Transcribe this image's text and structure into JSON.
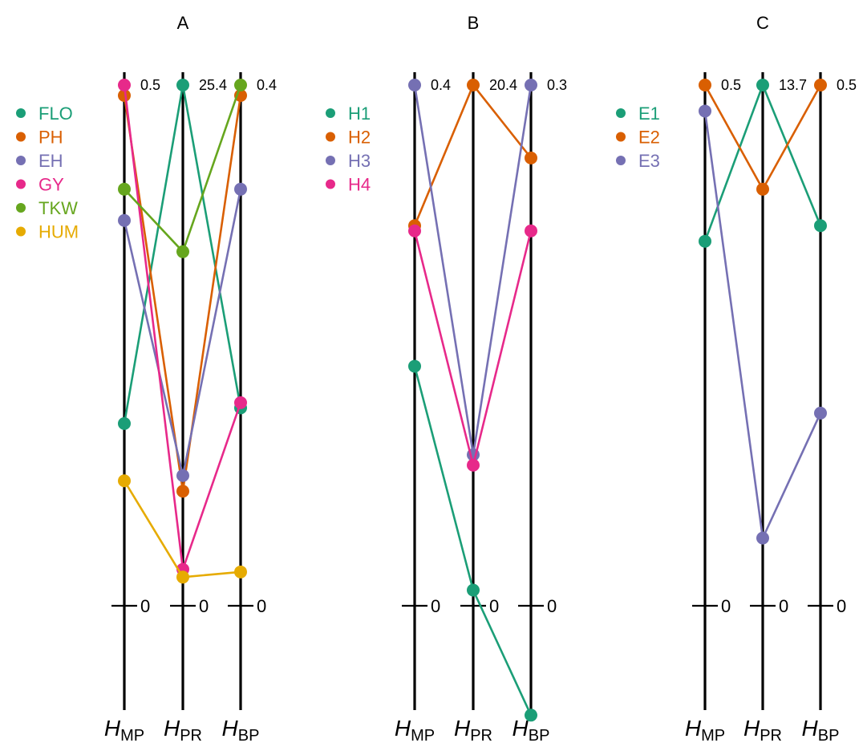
{
  "chart_data": [
    {
      "type": "line",
      "title": "A",
      "axes": [
        "H_MP",
        "H_PR",
        "H_BP"
      ],
      "axis_labels": [
        {
          "main": "H",
          "sub": "MP"
        },
        {
          "main": "H",
          "sub": "PR"
        },
        {
          "main": "H",
          "sub": "BP"
        }
      ],
      "axis_max": [
        "0.5",
        "25.4",
        "0.4"
      ],
      "axis_min": [
        "0",
        "0",
        "0"
      ],
      "y_scale": "relative",
      "series": [
        {
          "name": "FLO",
          "color": "#1B9E77",
          "values": [
            0.35,
            1.0,
            0.38
          ]
        },
        {
          "name": "PH",
          "color": "#D95F02",
          "values": [
            0.98,
            0.22,
            0.98
          ]
        },
        {
          "name": "EH",
          "color": "#7570B3",
          "values": [
            0.74,
            0.25,
            0.8
          ]
        },
        {
          "name": "GY",
          "color": "#E7298A",
          "values": [
            1.0,
            0.07,
            0.39
          ]
        },
        {
          "name": "TKW",
          "color": "#66A61E",
          "values": [
            0.8,
            0.68,
            1.0
          ]
        },
        {
          "name": "HUM",
          "color": "#E6AB02",
          "values": [
            0.24,
            0.055,
            0.065
          ]
        }
      ]
    },
    {
      "type": "line",
      "title": "B",
      "axes": [
        "H_MP",
        "H_PR",
        "H_BP"
      ],
      "axis_labels": [
        {
          "main": "H",
          "sub": "MP"
        },
        {
          "main": "H",
          "sub": "PR"
        },
        {
          "main": "H",
          "sub": "BP"
        }
      ],
      "axis_max": [
        "0.4",
        "20.4",
        "0.3"
      ],
      "axis_min": [
        "0",
        "0",
        "0"
      ],
      "y_scale": "relative",
      "series": [
        {
          "name": "H1",
          "color": "#1B9E77",
          "values": [
            0.46,
            0.03,
            -0.21
          ]
        },
        {
          "name": "H2",
          "color": "#D95F02",
          "values": [
            0.73,
            1.0,
            0.86
          ]
        },
        {
          "name": "H3",
          "color": "#7570B3",
          "values": [
            1.0,
            0.29,
            1.0
          ]
        },
        {
          "name": "H4",
          "color": "#E7298A",
          "values": [
            0.72,
            0.27,
            0.72
          ]
        }
      ]
    },
    {
      "type": "line",
      "title": "C",
      "axes": [
        "H_MP",
        "H_PR",
        "H_BP"
      ],
      "axis_labels": [
        {
          "main": "H",
          "sub": "MP"
        },
        {
          "main": "H",
          "sub": "PR"
        },
        {
          "main": "H",
          "sub": "BP"
        }
      ],
      "axis_max": [
        "0.5",
        "13.7",
        "0.5"
      ],
      "axis_min": [
        "0",
        "0",
        "0"
      ],
      "y_scale": "relative",
      "series": [
        {
          "name": "E1",
          "color": "#1B9E77",
          "values": [
            0.7,
            1.0,
            0.73
          ]
        },
        {
          "name": "E2",
          "color": "#D95F02",
          "values": [
            1.0,
            0.8,
            1.0
          ]
        },
        {
          "name": "E3",
          "color": "#7570B3",
          "values": [
            0.95,
            0.13,
            0.37
          ]
        }
      ]
    }
  ]
}
